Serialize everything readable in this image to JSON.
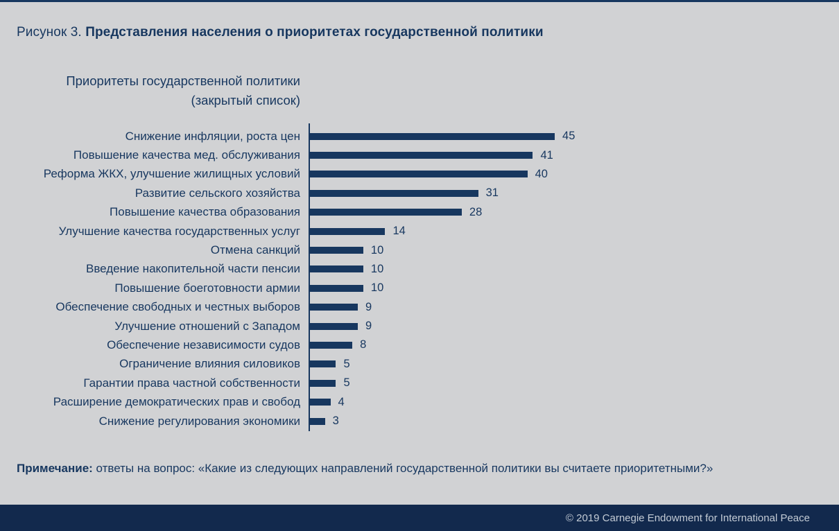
{
  "page": {
    "background_color": "#d1d2d4",
    "accent_color": "#17375f",
    "footer_bg_color": "#12294d",
    "footer_text_color": "#c3cbd5"
  },
  "header": {
    "figure_label": "Рисунок 3.",
    "title": "Представления населения о приоритетах государственной политики"
  },
  "chart_title": {
    "line1": "Приоритеты государственной политики",
    "line2": "(закрытый список)"
  },
  "chart_data": {
    "type": "bar",
    "orientation": "horizontal",
    "title": "Приоритеты государственной политики (закрытый список)",
    "categories": [
      "Снижение инфляции, роста цен",
      "Повышение качества мед. обслуживания",
      "Реформа ЖКХ, улучшение жилищных условий",
      "Развитие сельского хозяйства",
      "Повышение качества образования",
      "Улучшение качества государственных услуг",
      "Отмена санкций",
      "Введение накопительной части пенсии",
      "Повышение боеготовности армии",
      "Обеспечение свободных и честных выборов",
      "Улучшение отношений с Западом",
      "Обеспечение независимости судов",
      "Ограничение влияния силовиков",
      "Гарантии права частной собственности",
      "Расширение демократических прав и свобод",
      "Снижение регулирования экономики"
    ],
    "values": [
      45,
      41,
      40,
      31,
      28,
      14,
      10,
      10,
      10,
      9,
      9,
      8,
      5,
      5,
      4,
      3
    ],
    "xlabel": "",
    "ylabel": "",
    "xlim": [
      0,
      50
    ],
    "grid": false,
    "legend": false,
    "value_labels": true,
    "bar_color": "#17375f"
  },
  "note": {
    "label": "Примечание:",
    "text": " ответы на вопрос: «Какие из следующих направлений государственной политики вы считаете приоритетными?»"
  },
  "footer": {
    "copyright": "© 2019 Carnegie Endowment for International Peace"
  }
}
